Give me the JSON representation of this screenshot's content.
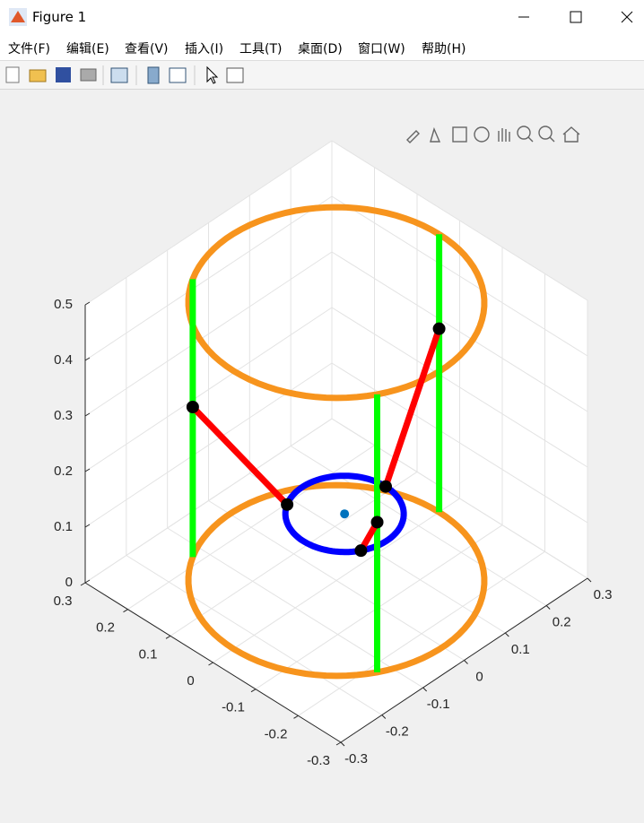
{
  "window": {
    "title": "Figure 1"
  },
  "menu": [
    "文件(F)",
    "编辑(E)",
    "查看(V)",
    "插入(I)",
    "工具(T)",
    "桌面(D)",
    "窗口(W)",
    "帮助(H)"
  ],
  "chart_data": {
    "type": "line3d",
    "xlim": [
      -0.3,
      0.3
    ],
    "ylim": [
      -0.3,
      0.3
    ],
    "zlim": [
      0,
      0.5
    ],
    "xticks": [
      -0.3,
      -0.2,
      -0.1,
      0,
      0.1,
      0.2,
      0.3
    ],
    "yticks": [
      -0.3,
      -0.2,
      -0.1,
      0,
      0.1,
      0.2,
      0.3
    ],
    "zticks": [
      0,
      0.1,
      0.2,
      0.3,
      0.4,
      0.5
    ],
    "grid": true,
    "rings": [
      {
        "color": "#f7941d",
        "center": [
          0,
          0,
          0
        ],
        "radius": 0.25
      },
      {
        "color": "#f7941d",
        "center": [
          0,
          0,
          0.5
        ],
        "radius": 0.25
      },
      {
        "color": "#0000ff",
        "center": [
          0.02,
          0,
          0.11
        ],
        "radius": 0.1
      }
    ],
    "points": [
      {
        "color": "#0072bd",
        "x": 0.02,
        "y": 0,
        "z": 0.11
      }
    ],
    "series": [
      {
        "color": "#00ff00",
        "x": [
          0.25,
          0.25
        ],
        "y": [
          0,
          0
        ],
        "z": [
          0,
          0.5
        ]
      },
      {
        "color": "#00ff00",
        "x": [
          -0.125,
          -0.125
        ],
        "y": [
          0.2165,
          0.2165
        ],
        "z": [
          0,
          0.5
        ]
      },
      {
        "color": "#00ff00",
        "x": [
          -0.125,
          -0.125
        ],
        "y": [
          -0.2165,
          -0.2165
        ],
        "z": [
          0,
          0.5
        ]
      },
      {
        "color": "#ff0000",
        "marker": "#000000",
        "x": [
          0.25,
          0.12
        ],
        "y": [
          0,
          0
        ],
        "z": [
          0.33,
          0.11
        ]
      },
      {
        "color": "#ff0000",
        "marker": "#000000",
        "x": [
          -0.125,
          -0.03
        ],
        "y": [
          0.2165,
          0.0866
        ],
        "z": [
          0.27,
          0.11
        ]
      },
      {
        "color": "#ff0000",
        "marker": "#000000",
        "x": [
          -0.125,
          -0.03
        ],
        "y": [
          -0.2165,
          -0.0866
        ],
        "z": [
          0.27,
          0.11
        ]
      }
    ]
  }
}
